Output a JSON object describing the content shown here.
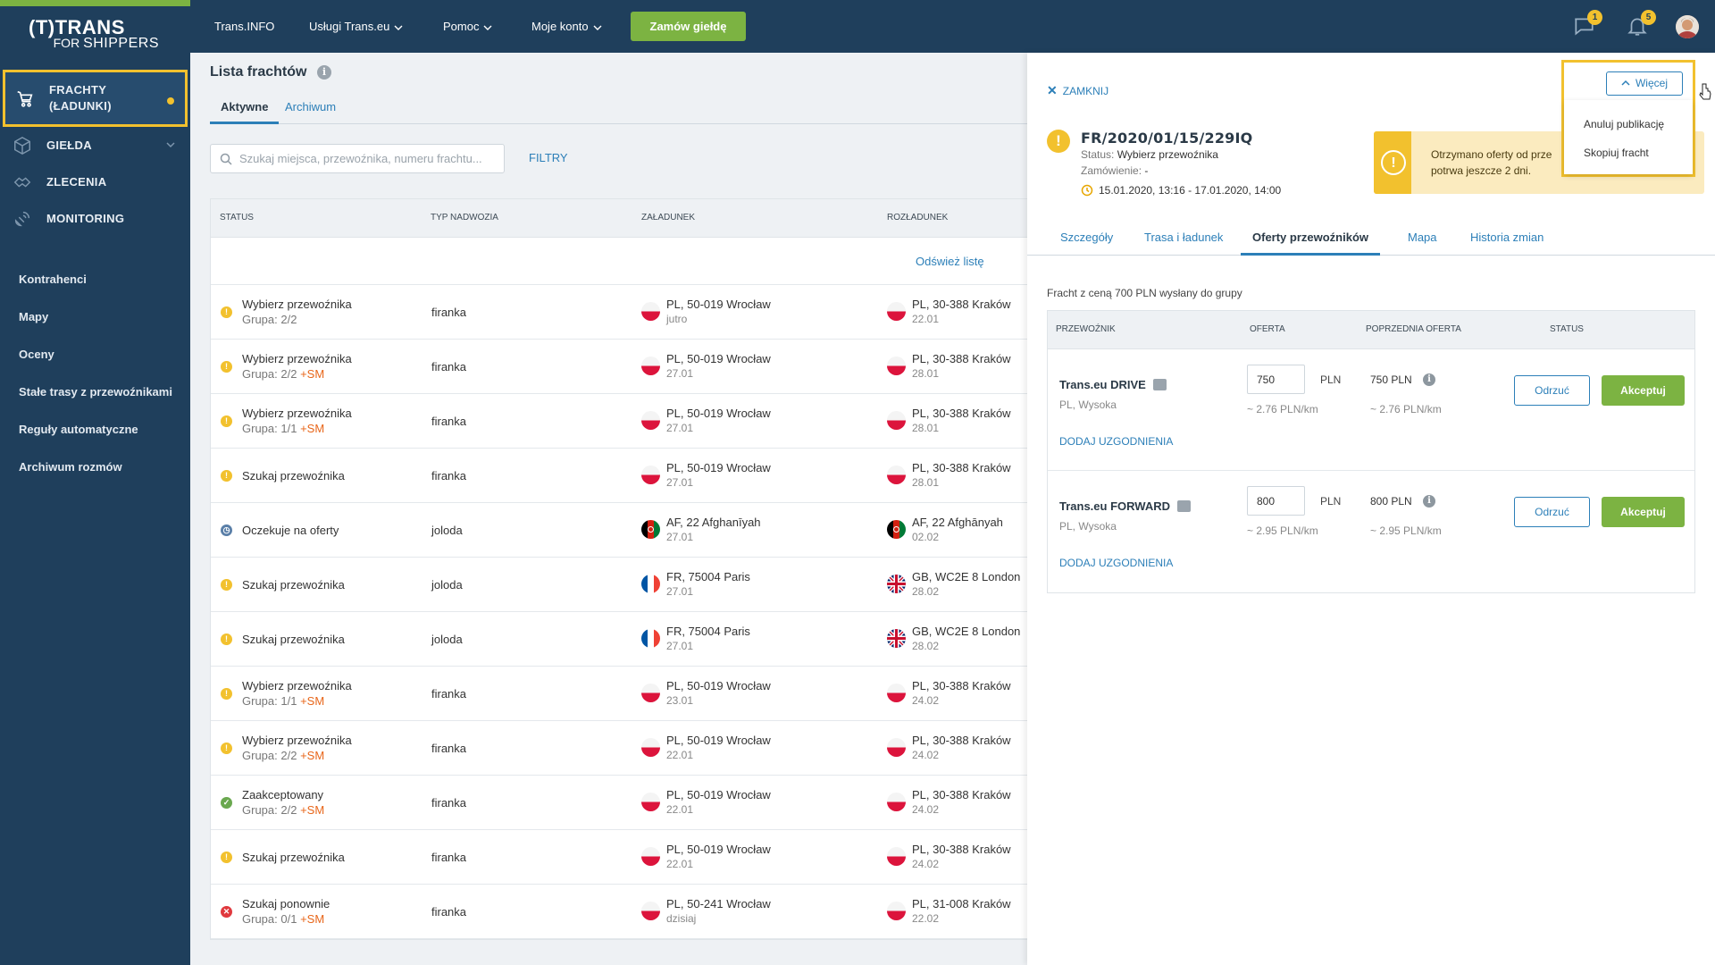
{
  "brand": {
    "top": "TRANS",
    "bottom_prefix": "FOR",
    "bottom": "SHIPPERS",
    "paren": "(T)"
  },
  "colors": {
    "sidebar": "#1f3f5c",
    "accent_green": "#7cb342",
    "accent_yellow": "#f2c12e",
    "link_blue": "#2c7fb8",
    "sm_orange": "#e8661a"
  },
  "sidebar": {
    "main": [
      {
        "label1": "FRACHTY",
        "label2": "(ŁADUNKI)",
        "icon": "cart-icon"
      },
      {
        "label": "GIEŁDA",
        "icon": "box-icon"
      },
      {
        "label": "ZLECENIA",
        "icon": "handshake-icon"
      },
      {
        "label": "MONITORING",
        "icon": "satellite-icon"
      }
    ],
    "sub": [
      "Kontrahenci",
      "Mapy",
      "Oceny",
      "Stałe trasy z przewoźnikami",
      "Reguły automatyczne",
      "Archiwum rozmów"
    ]
  },
  "topbar": {
    "items": [
      "Trans.INFO",
      "Usługi Trans.eu",
      "Pomoc",
      "Moje konto"
    ],
    "cta": "Zamów giełdę",
    "messages_badge": "1",
    "notifications_badge": "5"
  },
  "list": {
    "title": "Lista frachtów",
    "tabs": [
      "Aktywne",
      "Archiwum"
    ],
    "search_placeholder": "Szukaj miejsca, przewoźnika, numeru frachtu...",
    "filters": "FILTRY",
    "headers": [
      "STATUS",
      "TYP NADWOZIA",
      "ZAŁADUNEK",
      "ROZŁADUNEK"
    ],
    "refresh": "Odśwież listę",
    "sm": "+SM",
    "rows": [
      {
        "icon": "warn",
        "status": "Wybierz przewoźnika",
        "group": "Grupa: 2/2",
        "sm": false,
        "body": "firanka",
        "lflag": "pl",
        "load": "PL, 50-019 Wrocław",
        "ldate": "jutro",
        "uflag": "pl",
        "unload": "PL, 30-388 Kraków",
        "udate": "22.01"
      },
      {
        "icon": "warn",
        "status": "Wybierz przewoźnika",
        "group": "Grupa: 2/2",
        "sm": true,
        "body": "firanka",
        "lflag": "pl",
        "load": "PL, 50-019 Wrocław",
        "ldate": "27.01",
        "uflag": "pl",
        "unload": "PL, 30-388 Kraków",
        "udate": "28.01"
      },
      {
        "icon": "warn",
        "status": "Wybierz przewoźnika",
        "group": "Grupa: 1/1",
        "sm": true,
        "body": "firanka",
        "lflag": "pl",
        "load": "PL, 50-019 Wrocław",
        "ldate": "27.01",
        "uflag": "pl",
        "unload": "PL, 30-388 Kraków",
        "udate": "28.01"
      },
      {
        "icon": "warn",
        "status": "Szukaj przewoźnika",
        "group": "",
        "sm": false,
        "body": "firanka",
        "lflag": "pl",
        "load": "PL, 50-019 Wrocław",
        "ldate": "27.01",
        "uflag": "pl",
        "unload": "PL, 30-388 Kraków",
        "udate": "28.01"
      },
      {
        "icon": "clock",
        "status": "Oczekuje na oferty",
        "group": "",
        "sm": false,
        "body": "joloda",
        "lflag": "af",
        "load": "AF, 22 Afghanīyah",
        "ldate": "27.01",
        "uflag": "af",
        "unload": "AF, 22 Afghānyah",
        "udate": "02.02"
      },
      {
        "icon": "warn",
        "status": "Szukaj przewoźnika",
        "group": "",
        "sm": false,
        "body": "joloda",
        "lflag": "fr",
        "load": "FR, 75004 Paris",
        "ldate": "27.01",
        "uflag": "gb",
        "unload": "GB, WC2E 8 London",
        "udate": "28.02"
      },
      {
        "icon": "warn",
        "status": "Szukaj przewoźnika",
        "group": "",
        "sm": false,
        "body": "joloda",
        "lflag": "fr",
        "load": "FR, 75004 Paris",
        "ldate": "27.01",
        "uflag": "gb",
        "unload": "GB, WC2E 8 London",
        "udate": "28.02"
      },
      {
        "icon": "warn",
        "status": "Wybierz przewoźnika",
        "group": "Grupa: 1/1",
        "sm": true,
        "body": "firanka",
        "lflag": "pl",
        "load": "PL, 50-019 Wrocław",
        "ldate": "23.01",
        "uflag": "pl",
        "unload": "PL, 30-388 Kraków",
        "udate": "24.02"
      },
      {
        "icon": "warn",
        "status": "Wybierz przewoźnika",
        "group": "Grupa: 2/2",
        "sm": true,
        "body": "firanka",
        "lflag": "pl",
        "load": "PL, 50-019 Wrocław",
        "ldate": "22.01",
        "uflag": "pl",
        "unload": "PL, 30-388 Kraków",
        "udate": "24.02"
      },
      {
        "icon": "ok",
        "status": "Zaakceptowany",
        "group": "Grupa: 2/2",
        "sm": true,
        "body": "firanka",
        "lflag": "pl",
        "load": "PL, 50-019 Wrocław",
        "ldate": "22.01",
        "uflag": "pl",
        "unload": "PL, 30-388 Kraków",
        "udate": "24.02"
      },
      {
        "icon": "warn",
        "status": "Szukaj przewoźnika",
        "group": "",
        "sm": false,
        "body": "firanka",
        "lflag": "pl",
        "load": "PL, 50-019 Wrocław",
        "ldate": "22.01",
        "uflag": "pl",
        "unload": "PL, 30-388 Kraków",
        "udate": "24.02"
      },
      {
        "icon": "err",
        "status": "Szukaj ponownie",
        "group": "Grupa: 0/1",
        "sm": true,
        "body": "firanka",
        "lflag": "pl",
        "load": "PL, 50-241 Wrocław",
        "ldate": "dzisiaj",
        "uflag": "pl",
        "unload": "PL, 31-008 Kraków",
        "udate": "22.02"
      }
    ]
  },
  "panel": {
    "close": "ZAMKNIJ",
    "freight_id": "FR/2020/01/15/229IQ",
    "status_label": "Status:",
    "status_value": "Wybierz przewoźnika",
    "order_label": "Zamówienie:",
    "order_value": "-",
    "dates": "15.01.2020, 13:16 - 17.01.2020, 14:00",
    "alert_line1": "Otrzymano oferty od prze",
    "alert_line2": "potrwa jeszcze 2 dni.",
    "more": "Więcej",
    "menu": [
      "Anuluj publikację",
      "Skopiuj fracht"
    ],
    "tabs": [
      "Szczegóły",
      "Trasa i ładunek",
      "Oferty przewoźników",
      "Mapa",
      "Historia zmian"
    ],
    "sent_info": "Fracht z ceną 700 PLN wysłany do grupy",
    "offer_headers": [
      "PRZEWOŹNIK",
      "OFERTA",
      "POPRZEDNIA OFERTA",
      "STATUS"
    ],
    "offers": [
      {
        "carrier": "Trans.eu DRIVE",
        "loc": "PL, Wysoka",
        "offer": "750",
        "currency": "PLN",
        "perkm": "~ 2.76 PLN/km",
        "prev": "750  PLN",
        "prev_perkm": "~ 2.76 PLN/km",
        "agree": "DODAJ UZGODNIENIA",
        "reject": "Odrzuć",
        "accept": "Akceptuj"
      },
      {
        "carrier": "Trans.eu FORWARD",
        "loc": "PL, Wysoka",
        "offer": "800",
        "currency": "PLN",
        "perkm": "~ 2.95 PLN/km",
        "prev": "800  PLN",
        "prev_perkm": "~ 2.95 PLN/km",
        "agree": "DODAJ UZGODNIENIA",
        "reject": "Odrzuć",
        "accept": "Akceptuj"
      }
    ]
  }
}
